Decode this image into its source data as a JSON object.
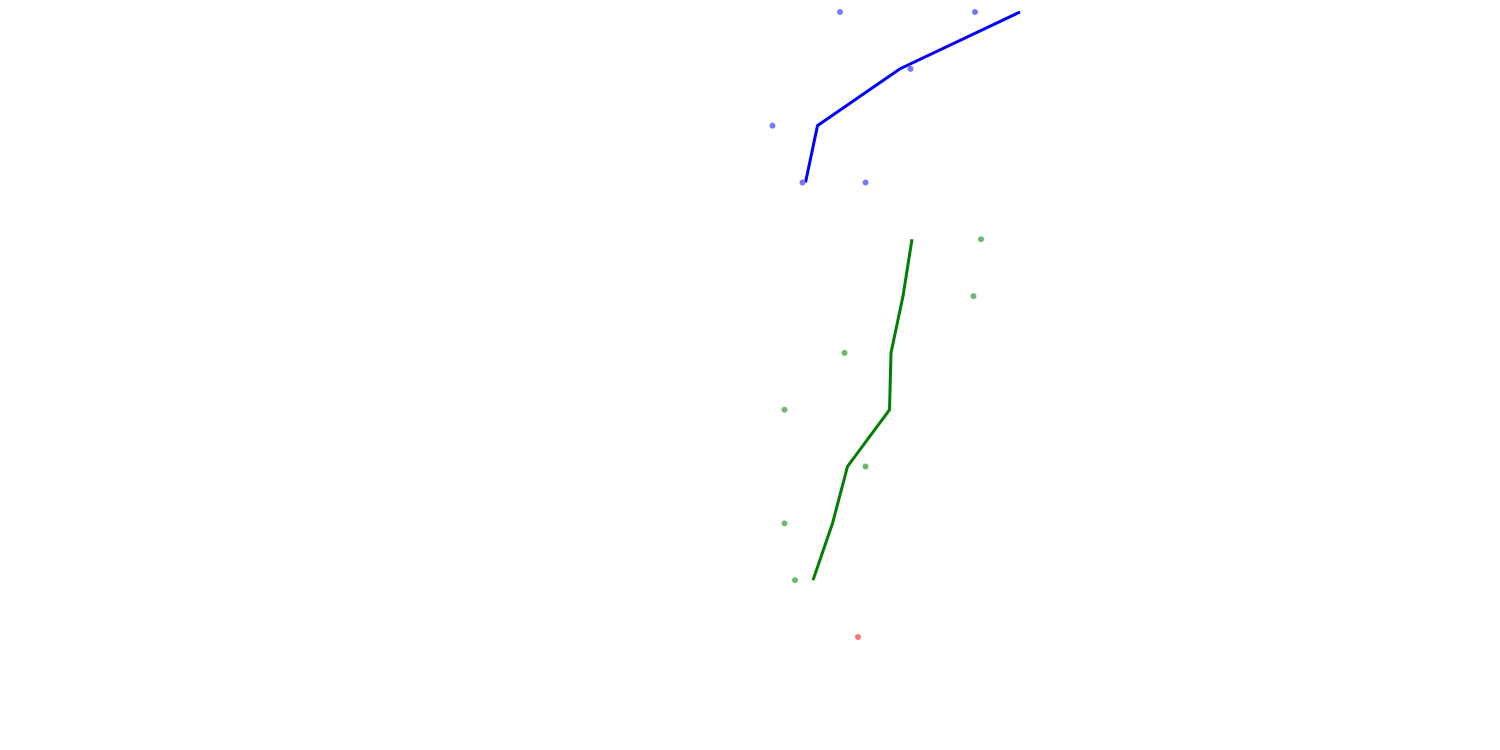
{
  "chart_data": {
    "type": "scatter",
    "title": "",
    "xlabel": "",
    "ylabel": "",
    "grid": false,
    "legend": "none",
    "axes_visible": false,
    "xlim": [
      0,
      1
    ],
    "ylim": [
      0,
      11
    ],
    "series": [
      {
        "color": "#0000ff",
        "marker_color": "#7777ff",
        "points": [
          {
            "x": 0.56,
            "y": 0
          },
          {
            "x": 0.65,
            "y": 0
          },
          {
            "x": 0.607,
            "y": 1
          },
          {
            "x": 0.515,
            "y": 2
          },
          {
            "x": 0.535,
            "y": 3
          },
          {
            "x": 0.577,
            "y": 3
          }
        ],
        "line": [
          {
            "x": 0.68,
            "y": 0
          },
          {
            "x": 0.6,
            "y": 1
          },
          {
            "x": 0.545,
            "y": 2
          },
          {
            "x": 0.537,
            "y": 3
          }
        ]
      },
      {
        "color": "#008000",
        "marker_color": "#6db86d",
        "points": [
          {
            "x": 0.654,
            "y": 4
          },
          {
            "x": 0.649,
            "y": 5
          },
          {
            "x": 0.563,
            "y": 6
          },
          {
            "x": 0.523,
            "y": 7
          },
          {
            "x": 0.577,
            "y": 8
          },
          {
            "x": 0.523,
            "y": 9
          },
          {
            "x": 0.53,
            "y": 10
          }
        ],
        "line": [
          {
            "x": 0.608,
            "y": 4
          },
          {
            "x": 0.602,
            "y": 5
          },
          {
            "x": 0.594,
            "y": 6
          },
          {
            "x": 0.593,
            "y": 7
          },
          {
            "x": 0.565,
            "y": 8
          },
          {
            "x": 0.555,
            "y": 9
          },
          {
            "x": 0.542,
            "y": 10
          }
        ]
      },
      {
        "color": "#ff0000",
        "marker_color": "#ff7777",
        "points": [
          {
            "x": 0.572,
            "y": 11
          }
        ],
        "line": []
      }
    ]
  }
}
